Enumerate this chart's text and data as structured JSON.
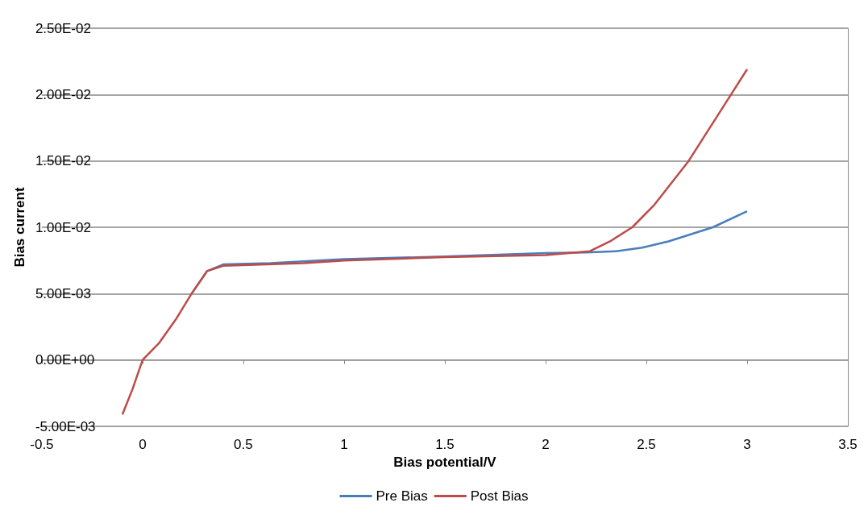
{
  "chart_data": {
    "type": "line",
    "xlabel": "Bias potential/V",
    "ylabel": "Bias current",
    "xlim": [
      -0.5,
      3.5
    ],
    "xticks": [
      -0.5,
      0,
      0.5,
      1,
      1.5,
      2,
      2.5,
      3,
      3.5
    ],
    "ylim": [
      -0.005,
      0.025
    ],
    "yticks": [
      {
        "value": -0.005,
        "label": "-5.00E-03"
      },
      {
        "value": 0,
        "label": "0.00E+00"
      },
      {
        "value": 0.005,
        "label": "5.00E-03"
      },
      {
        "value": 0.01,
        "label": "1.00E-02"
      },
      {
        "value": 0.015,
        "label": "1.50E-02"
      },
      {
        "value": 0.02,
        "label": "2.00E-02"
      },
      {
        "value": 0.025,
        "label": "2.50E-02"
      }
    ],
    "grid": "y",
    "legend": "bottom",
    "marker": "none",
    "line_style": "solid",
    "series": [
      {
        "name": "Pre Bias",
        "color": "#4a7ebb",
        "x": [
          0.243,
          0.32,
          0.4,
          0.635,
          1,
          1.5,
          2,
          2.2,
          2.35,
          2.48,
          2.61,
          2.83,
          3
        ],
        "values": [
          0.005,
          0.0067,
          0.0072,
          0.0073,
          0.0076,
          0.0078,
          0.00805,
          0.0081,
          0.0082,
          0.00847,
          0.00894,
          0.01,
          0.0112
        ]
      },
      {
        "name": "Post Bias",
        "color": "#be4b48",
        "x": [
          -0.1,
          -0.05,
          0,
          0.083,
          0.165,
          0.243,
          0.32,
          0.4,
          0.8,
          1,
          1.5,
          2,
          2.22,
          2.32,
          2.43,
          2.54,
          2.71,
          2.92,
          3
        ],
        "values": [
          -0.0041,
          -0.0022,
          0,
          0.0013,
          0.00306,
          0.005,
          0.0067,
          0.0071,
          0.0073,
          0.0075,
          0.00775,
          0.0079,
          0.0082,
          0.00894,
          0.01,
          0.0117,
          0.015,
          0.02,
          0.0219
        ]
      }
    ]
  }
}
